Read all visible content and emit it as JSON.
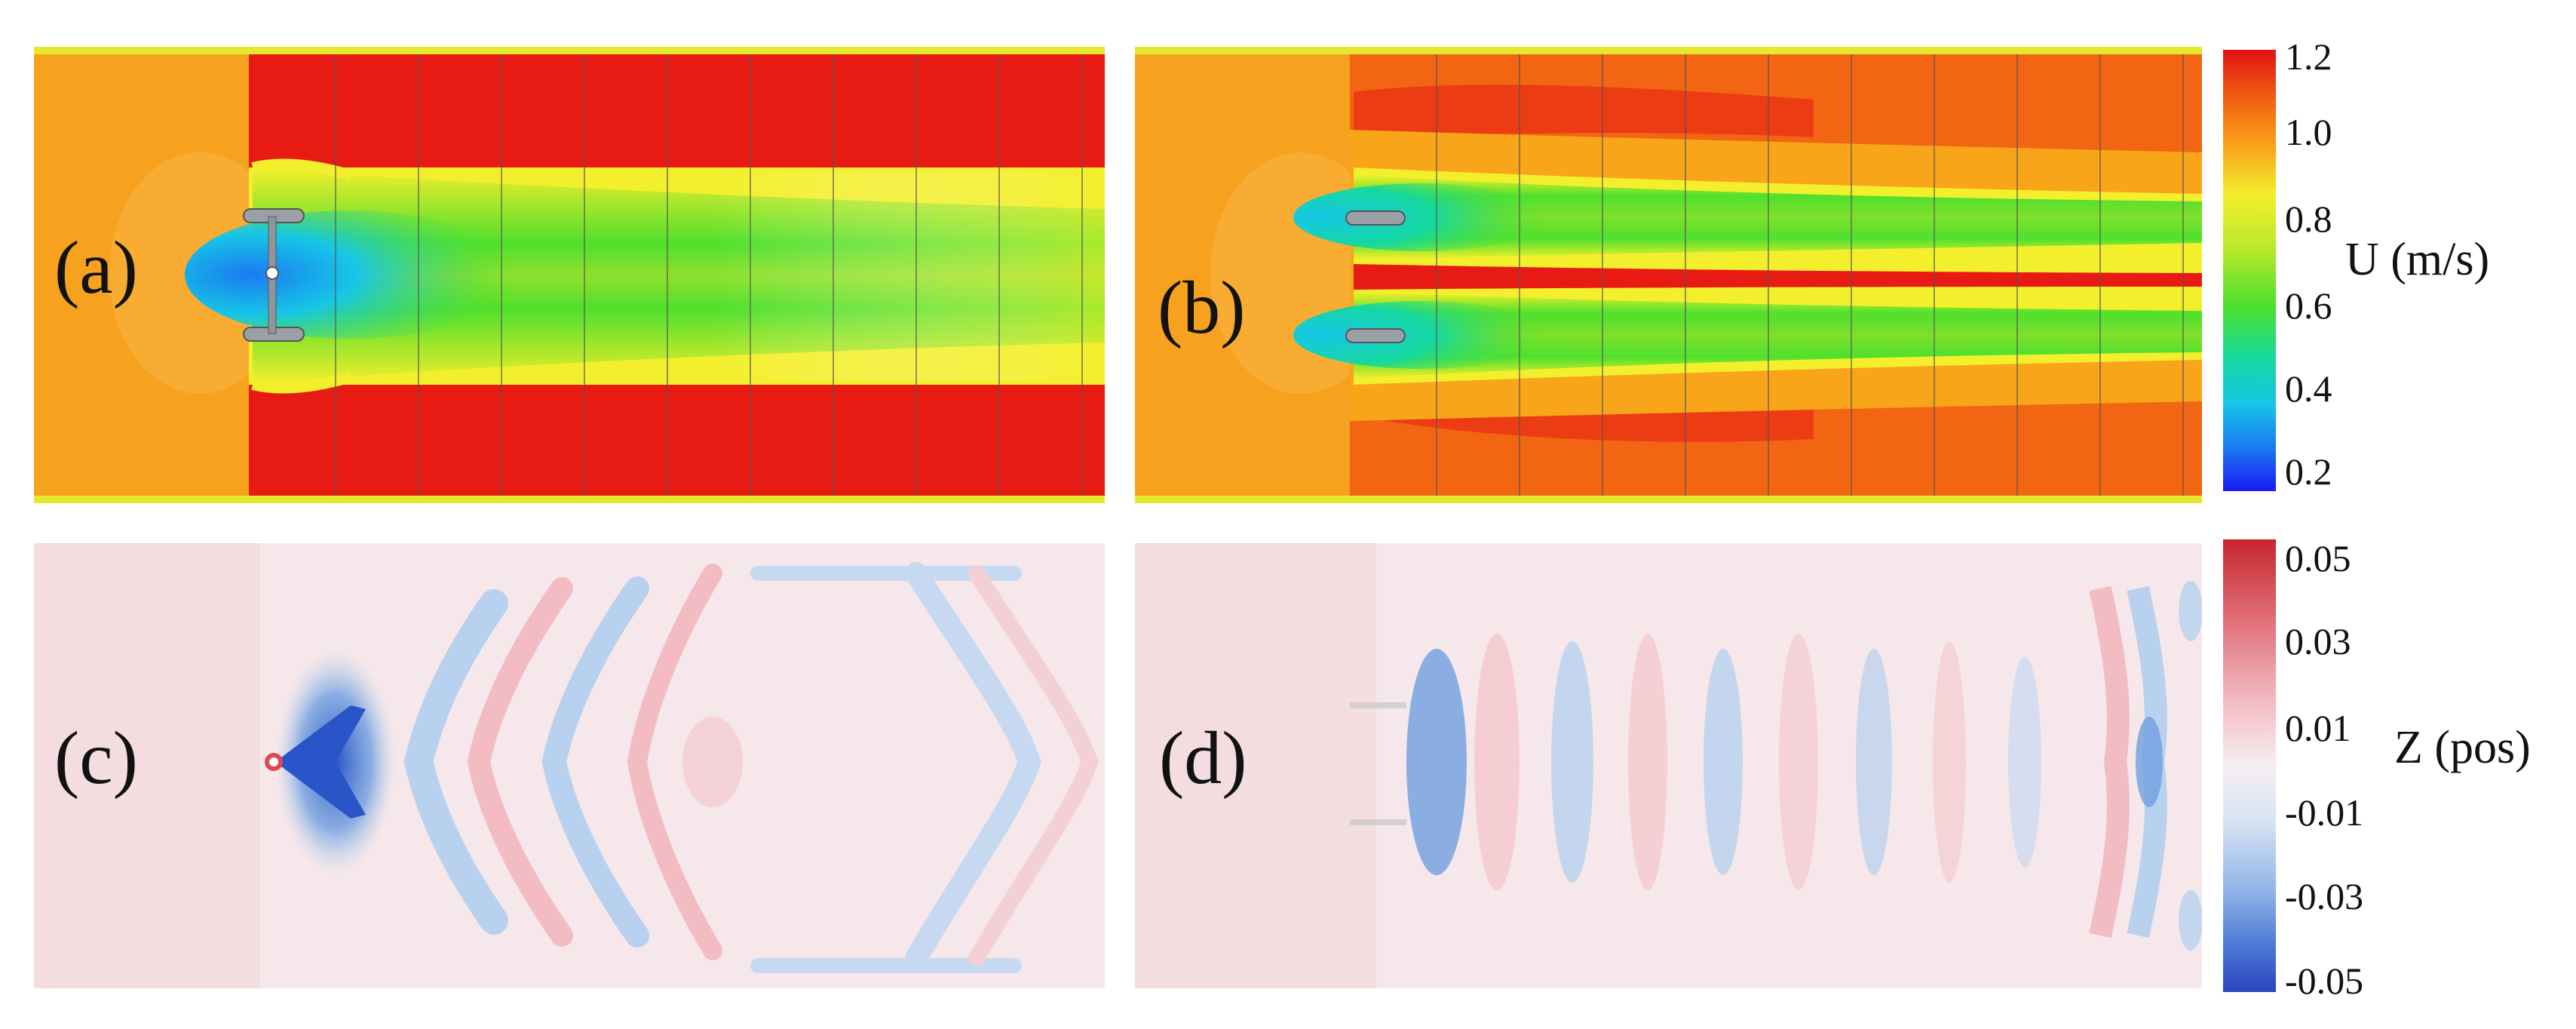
{
  "panels": [
    {
      "id": "a",
      "label": "(a)",
      "field": "velocity",
      "layout": "single-turbine"
    },
    {
      "id": "b",
      "label": "(b)",
      "field": "velocity",
      "layout": "dual-turbine"
    },
    {
      "id": "c",
      "label": "(c)",
      "field": "free-surface",
      "layout": "single-turbine"
    },
    {
      "id": "d",
      "label": "(d)",
      "field": "free-surface",
      "layout": "dual-turbine"
    }
  ],
  "colorbars": {
    "velocity": {
      "title": "U (m/s)",
      "ticks": [
        "1.2",
        "1.0",
        "0.8",
        "0.6",
        "0.4",
        "0.2"
      ],
      "range": [
        0.2,
        1.2
      ],
      "colors": [
        "#e11313",
        "#f26512",
        "#f9a51a",
        "#f3ef2c",
        "#b9e82c",
        "#4fe02c",
        "#15d8a0",
        "#17c7e6",
        "#1a7bf0",
        "#1a1af5"
      ]
    },
    "surface": {
      "title": "Z (pos)",
      "ticks": [
        "0.05",
        "0.03",
        "0.01",
        "-0.01",
        "-0.03",
        "-0.05"
      ],
      "range": [
        -0.05,
        0.05
      ],
      "colors": [
        "#c7262d",
        "#e0707a",
        "#f3bcc3",
        "#f6e8ea",
        "#e8eef6",
        "#b8d1ef",
        "#6f9fdf",
        "#2a55c8"
      ]
    }
  }
}
